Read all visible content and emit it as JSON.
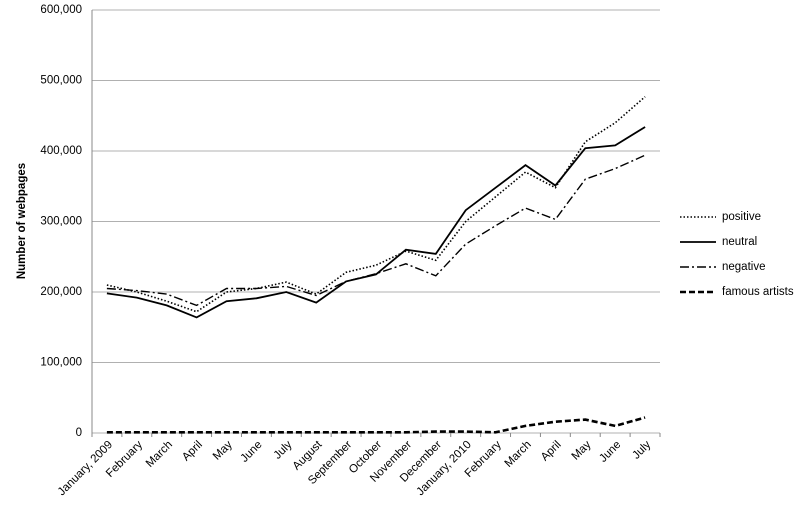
{
  "chart_data": {
    "type": "line",
    "y_label": "Number of webpages",
    "categories": [
      "January, 2009",
      "February",
      "March",
      "April",
      "May",
      "June",
      "July",
      "August",
      "September",
      "October",
      "November",
      "December",
      "January, 2010",
      "February",
      "March",
      "April",
      "May",
      "June",
      "July"
    ],
    "series": [
      {
        "name": "positive",
        "color": "#000000",
        "dash": "dotted",
        "values": [
          210000,
          200000,
          187000,
          172000,
          200000,
          205000,
          214000,
          197000,
          228000,
          238000,
          258000,
          245000,
          300000,
          335000,
          370000,
          348000,
          413000,
          440000,
          477000
        ]
      },
      {
        "name": "neutral",
        "color": "#000000",
        "dash": "solid",
        "values": [
          198000,
          192000,
          181000,
          164000,
          187000,
          191000,
          200000,
          185000,
          215000,
          225000,
          260000,
          254000,
          316000,
          348000,
          380000,
          351000,
          404000,
          408000,
          434000
        ]
      },
      {
        "name": "negative",
        "color": "#000000",
        "dash": "dashdot",
        "values": [
          205000,
          202000,
          197000,
          181000,
          205000,
          205000,
          208000,
          195000,
          215000,
          226000,
          240000,
          223000,
          268000,
          294000,
          319000,
          303000,
          360000,
          375000,
          394000
        ]
      },
      {
        "name": "famous artists",
        "color": "#000000",
        "dash": "dashed",
        "values": [
          1000,
          1000,
          1000,
          1000,
          1000,
          1000,
          1000,
          1000,
          1000,
          1000,
          1000,
          2000,
          2000,
          1000,
          10000,
          16000,
          19000,
          10000,
          22000
        ]
      }
    ],
    "ylim": [
      0,
      600000
    ],
    "yticks": [
      0,
      {
        "value": 100000,
        "label": "100,000"
      },
      {
        "value": 200000,
        "label": "200,000"
      },
      {
        "value": 300000,
        "label": "300,000"
      },
      {
        "value": 400000,
        "label": "400,000"
      },
      {
        "value": 500000,
        "label": "500,000"
      },
      {
        "value": 600000,
        "label": "600,000"
      }
    ],
    "grid": true,
    "legend": "right"
  }
}
